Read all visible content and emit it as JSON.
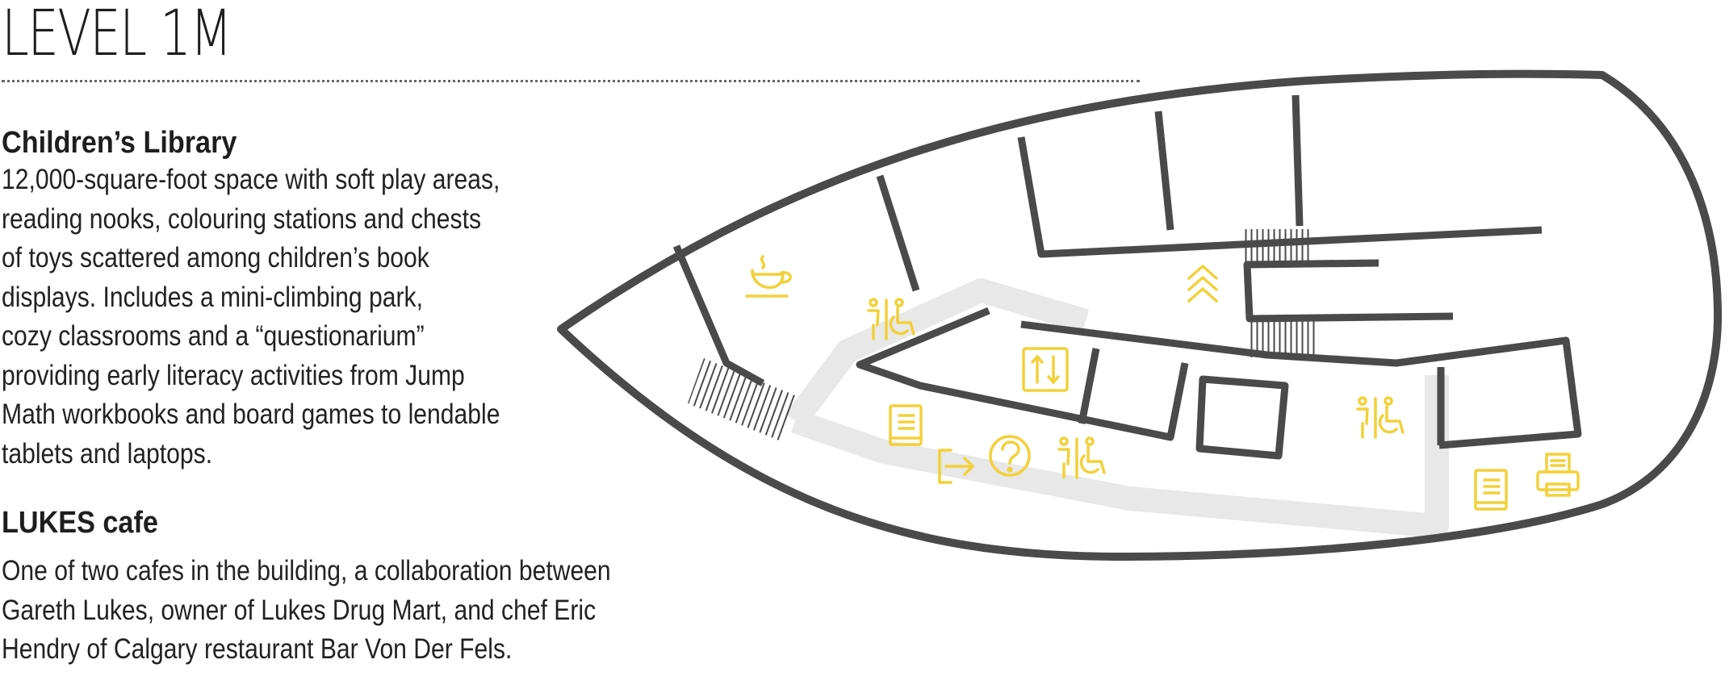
{
  "page": {
    "title": "LEVEL 1M"
  },
  "sections": [
    {
      "heading": "Children’s Library",
      "body": "12,000-square-foot space with soft play areas,\nreading nooks, colouring stations and chests\nof toys scattered among children’s book\ndisplays. Includes a mini-climbing park,\ncozy classrooms and a “questionarium”\nproviding early literacy activities from Jump\nMath workbooks and board games to lendable\ntablets and laptops."
    },
    {
      "heading": "LUKES cafe",
      "body": "One of two cafes in the building, a collaboration between\nGareth Lukes, owner of Lukes Drug Mart, and chef Eric\nHendry of Calgary restaurant Bar Von Der Fels."
    }
  ],
  "map": {
    "colors": {
      "walls": "#4a4a4a",
      "path": "#e8e8e8",
      "icons": "#f2d13a",
      "text": "#1e1e1e"
    },
    "icons": [
      "cafe-cup-icon",
      "restroom-accessible-icon",
      "escalator-up-icon",
      "elevator-icon",
      "book-icon",
      "exit-icon",
      "information-question-icon",
      "printer-icon"
    ]
  }
}
